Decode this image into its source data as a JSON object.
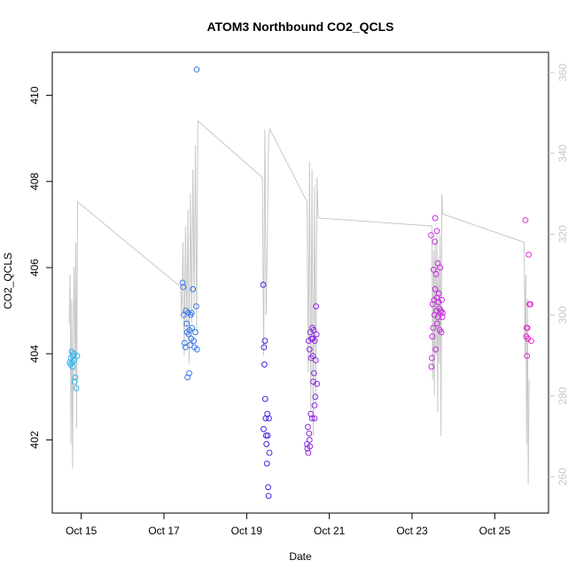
{
  "chart_data": {
    "type": "scatter",
    "title": "ATOM3 Northbound CO2_QCLS",
    "xlabel": "Date",
    "ylabel": "CO2_QCLS",
    "xlim": [
      14.3,
      26.3
    ],
    "ylim": [
      400.3,
      411.0
    ],
    "y2lim": [
      251.0,
      365.0
    ],
    "x_ticks": [
      {
        "value": 15,
        "label": "Oct 15"
      },
      {
        "value": 17,
        "label": "Oct 17"
      },
      {
        "value": 19,
        "label": "Oct 19"
      },
      {
        "value": 21,
        "label": "Oct 21"
      },
      {
        "value": 23,
        "label": "Oct 23"
      },
      {
        "value": 25,
        "label": "Oct 25"
      }
    ],
    "y_ticks": [
      402,
      404,
      406,
      408,
      410
    ],
    "y2_ticks": [
      260,
      280,
      300,
      320,
      340,
      360
    ],
    "grid": false,
    "colors": {
      "line": "#c8c8c8",
      "axis": "#000000",
      "right_axis": "#c8c8c8"
    },
    "line_series": {
      "x": [
        14.71,
        14.73,
        14.75,
        14.77,
        14.79,
        14.81,
        14.83,
        14.85,
        14.87,
        14.89,
        14.91,
        17.4,
        17.43,
        17.46,
        17.49,
        17.52,
        17.55,
        17.58,
        17.61,
        17.64,
        17.67,
        17.7,
        17.73,
        17.76,
        17.79,
        17.82,
        19.38,
        19.41,
        19.44,
        19.47,
        19.5,
        19.53,
        19.56,
        20.46,
        20.49,
        20.52,
        20.55,
        20.58,
        20.61,
        20.64,
        20.67,
        20.7,
        20.73,
        23.48,
        23.5,
        23.52,
        23.54,
        23.56,
        23.58,
        23.6,
        23.62,
        23.64,
        23.66,
        23.68,
        23.7,
        23.72,
        23.74,
        25.71,
        25.73,
        25.75,
        25.77,
        25.79,
        25.81,
        25.83
      ],
      "y": [
        298.0,
        310.0,
        268.0,
        304.0,
        262.0,
        296.0,
        312.0,
        284.0,
        318.0,
        272.0,
        328.0,
        307.0,
        300.0,
        318.0,
        290.0,
        322.0,
        296.0,
        326.0,
        288.0,
        330.0,
        298.0,
        336.0,
        302.0,
        342.0,
        296.0,
        348.0,
        334.0,
        290.0,
        346.0,
        300.0,
        318.0,
        344.0,
        346.0,
        328.0,
        286.0,
        338.0,
        276.0,
        336.0,
        270.0,
        332.0,
        278.0,
        334.0,
        324.0,
        322.0,
        284.0,
        316.0,
        280.0,
        318.0,
        290.0,
        320.0,
        276.0,
        314.0,
        288.0,
        320.0,
        270.0,
        330.0,
        325.0,
        318.0,
        290.0,
        310.0,
        268.0,
        304.0,
        258.0,
        284.0
      ]
    },
    "series": [
      {
        "color": "#2eb6f0",
        "x": [
          14.72,
          14.74,
          14.75,
          14.77,
          14.79,
          14.8,
          14.82,
          14.84,
          14.86,
          14.88,
          14.9,
          14.78,
          14.83
        ],
        "y": [
          403.8,
          403.75,
          403.9,
          404.05,
          403.7,
          403.95,
          404.0,
          403.35,
          403.45,
          403.2,
          403.95,
          403.8,
          403.85
        ]
      },
      {
        "color": "#3a78e8",
        "x": [
          17.45,
          17.47,
          17.48,
          17.5,
          17.52,
          17.53,
          17.55,
          17.56,
          17.58,
          17.6,
          17.62,
          17.63,
          17.65,
          17.67,
          17.68,
          17.7,
          17.72,
          17.74,
          17.76,
          17.78,
          17.8,
          17.57,
          17.61,
          17.66,
          17.79
        ],
        "y": [
          405.65,
          405.55,
          404.9,
          404.25,
          404.15,
          405.0,
          404.7,
          404.5,
          404.95,
          404.45,
          404.55,
          404.2,
          404.9,
          404.95,
          404.6,
          405.5,
          404.3,
          404.15,
          404.5,
          405.1,
          404.1,
          403.45,
          403.55,
          404.35,
          410.6
        ]
      },
      {
        "color": "#3e2ae0",
        "x": [
          19.4,
          19.42,
          19.43,
          19.45,
          19.46,
          19.47,
          19.48,
          19.5,
          19.51,
          19.52,
          19.53,
          19.55,
          19.49,
          19.41,
          19.44,
          19.54
        ],
        "y": [
          405.6,
          404.15,
          403.75,
          402.95,
          402.5,
          402.1,
          401.9,
          402.6,
          402.1,
          400.9,
          400.7,
          401.7,
          401.45,
          402.25,
          404.3,
          402.5
        ]
      },
      {
        "color": "#8a2ae0",
        "x": [
          20.46,
          20.48,
          20.49,
          20.5,
          20.51,
          20.52,
          20.53,
          20.54,
          20.55,
          20.56,
          20.57,
          20.58,
          20.59,
          20.6,
          20.61,
          20.62,
          20.63,
          20.64,
          20.65,
          20.66,
          20.67,
          20.68,
          20.69,
          20.7,
          20.47,
          20.52,
          20.6,
          20.64
        ],
        "y": [
          401.9,
          402.3,
          401.7,
          404.3,
          402.15,
          404.1,
          401.85,
          404.5,
          402.6,
          403.9,
          404.35,
          402.5,
          404.6,
          403.95,
          403.35,
          404.55,
          403.55,
          402.8,
          404.3,
          403.0,
          403.85,
          405.1,
          404.45,
          403.3,
          401.8,
          402.0,
          404.35,
          402.5
        ]
      },
      {
        "color": "#c82ae0",
        "x": [
          23.46,
          23.48,
          23.49,
          23.5,
          23.51,
          23.52,
          23.53,
          23.54,
          23.55,
          23.56,
          23.57,
          23.58,
          23.59,
          23.6,
          23.61,
          23.62,
          23.63,
          23.64,
          23.65,
          23.66,
          23.67,
          23.68,
          23.69,
          23.7,
          23.71,
          23.72,
          23.73,
          23.74,
          23.47,
          23.56,
          23.6
        ],
        "y": [
          406.75,
          403.9,
          404.4,
          405.15,
          404.6,
          405.95,
          405.25,
          404.9,
          406.6,
          405.5,
          404.1,
          405.85,
          405.0,
          405.3,
          404.7,
          406.1,
          404.85,
          405.2,
          405.4,
          405.05,
          404.55,
          406.0,
          404.95,
          405.0,
          404.5,
          405.25,
          404.85,
          404.95,
          403.7,
          407.15,
          406.85
        ]
      },
      {
        "color": "#e02ad0",
        "x": [
          25.74,
          25.76,
          25.77,
          25.78,
          25.8,
          25.82,
          25.84,
          25.86,
          25.88,
          25.79
        ],
        "y": [
          407.1,
          404.4,
          404.6,
          403.95,
          404.35,
          406.3,
          405.15,
          405.15,
          404.3,
          404.6
        ]
      }
    ]
  }
}
